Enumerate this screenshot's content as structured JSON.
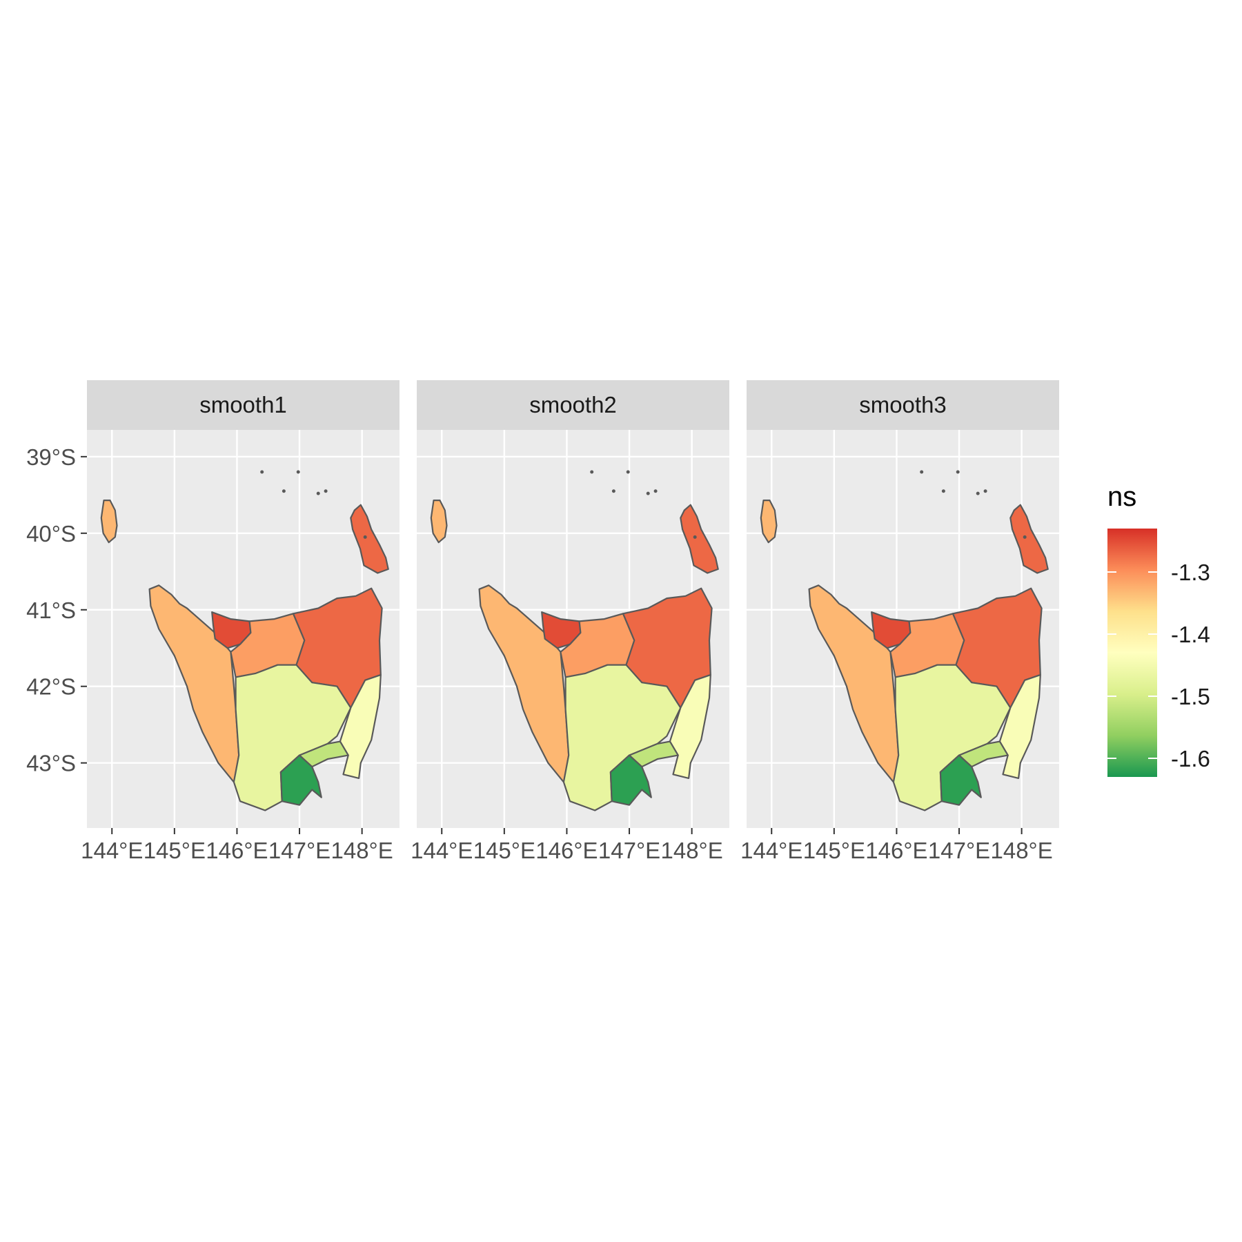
{
  "chart_data": {
    "type": "choropleth",
    "facets": [
      "smooth1",
      "smooth2",
      "smooth3"
    ],
    "x_ticks": [
      "144°E",
      "145°E",
      "146°E",
      "147°E",
      "148°E"
    ],
    "y_ticks": [
      "39°S",
      "40°S",
      "41°S",
      "42°S",
      "43°S"
    ],
    "xlim": [
      143.6,
      148.6
    ],
    "ylim": [
      -43.85,
      -38.65
    ],
    "grid": true,
    "legend": {
      "title": "ns",
      "position": "right",
      "range": [
        -1.63,
        -1.23
      ],
      "breaks": [
        -1.3,
        -1.4,
        -1.5,
        -1.6
      ],
      "labels": [
        "-1.3",
        "-1.4",
        "-1.5",
        "-1.6"
      ],
      "colors": [
        "#1a9850",
        "#91cf60",
        "#d9ef8b",
        "#ffffbf",
        "#fee08b",
        "#fc8d59",
        "#d73027"
      ]
    },
    "region_values": {
      "king_island": -1.33,
      "west_coast": -1.33,
      "burnie_devonport": -1.25,
      "central_north": -1.31,
      "north_east": -1.27,
      "flinders_island": -1.27,
      "central_south": -1.47,
      "east_coast": -1.44,
      "hobart_inner": -1.52,
      "huon_valley": -1.62
    }
  }
}
